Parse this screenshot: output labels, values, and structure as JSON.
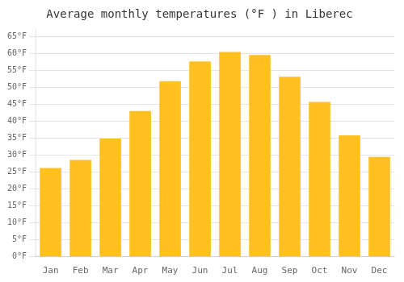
{
  "chart_data": {
    "type": "bar",
    "title": "Average monthly temperatures (°F ) in Liberec",
    "categories": [
      "Jan",
      "Feb",
      "Mar",
      "Apr",
      "May",
      "Jun",
      "Jul",
      "Aug",
      "Sep",
      "Oct",
      "Nov",
      "Dec"
    ],
    "values": [
      26.2,
      28.6,
      34.9,
      43.0,
      51.8,
      57.6,
      60.4,
      59.5,
      53.1,
      45.7,
      35.8,
      29.5
    ],
    "color": "#FFC020",
    "ylim": [
      0,
      67
    ],
    "yticks": [
      {
        "value": 0,
        "label": "0°F"
      },
      {
        "value": 5,
        "label": "5°F"
      },
      {
        "value": 10,
        "label": "10°F"
      },
      {
        "value": 15,
        "label": "15°F"
      },
      {
        "value": 20,
        "label": "20°F"
      },
      {
        "value": 25,
        "label": "25°F"
      },
      {
        "value": 30,
        "label": "30°F"
      },
      {
        "value": 35,
        "label": "35°F"
      },
      {
        "value": 40,
        "label": "40°F"
      },
      {
        "value": 45,
        "label": "45°F"
      },
      {
        "value": 50,
        "label": "50°F"
      },
      {
        "value": 55,
        "label": "55°F"
      },
      {
        "value": 60,
        "label": "60°F"
      },
      {
        "value": 65,
        "label": "65°F"
      }
    ],
    "grid": true
  }
}
